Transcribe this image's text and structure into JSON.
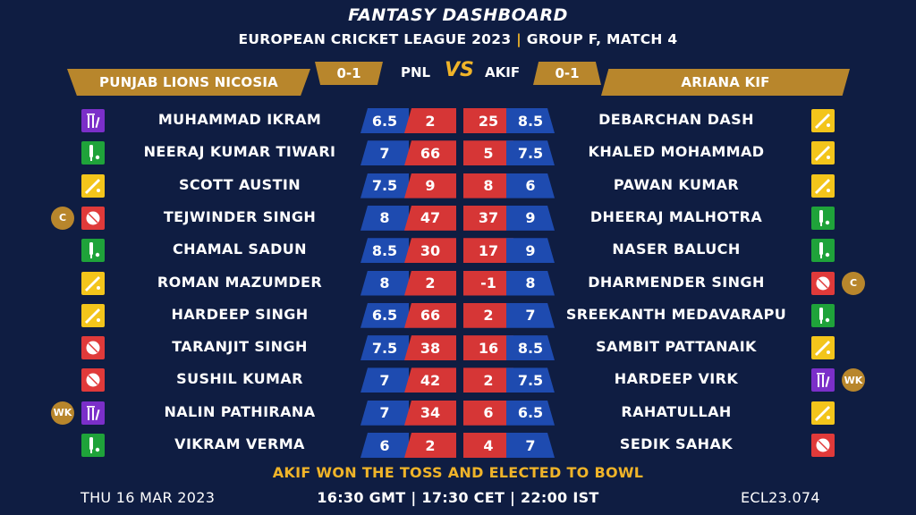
{
  "header": {
    "title": "FANTASY DASHBOARD",
    "league": "EUROPEAN CRICKET LEAGUE 2023",
    "separator": "|",
    "match": "GROUP F, MATCH 4"
  },
  "matchup": {
    "vs_label": "VS",
    "left": {
      "name": "PUNJAB LIONS NICOSIA",
      "abbr": "PNL",
      "record": "0-1"
    },
    "right": {
      "name": "ARIANA KIF",
      "abbr": "AKIF",
      "record": "0-1"
    }
  },
  "colors": {
    "background": "#0f1d42",
    "gold": "#b8862c",
    "credit_blue": "#1e4bb0",
    "points_red": "#d63636",
    "bowler_red": "#e03a3a",
    "batter_green": "#1fa33a",
    "allrounder_yellow": "#f3c51b",
    "keeper_purple": "#7b2fc9"
  },
  "rows": [
    {
      "left": {
        "name": "MUHAMMAD IKRAM",
        "role": "keeper",
        "credit": "6.5",
        "points": "2",
        "badge": ""
      },
      "right": {
        "name": "DEBARCHAN DASH",
        "role": "allrounder",
        "credit": "8.5",
        "points": "25",
        "badge": ""
      }
    },
    {
      "left": {
        "name": "NEERAJ KUMAR TIWARI",
        "role": "batter",
        "credit": "7",
        "points": "66",
        "badge": ""
      },
      "right": {
        "name": "KHALED MOHAMMAD",
        "role": "allrounder",
        "credit": "7.5",
        "points": "5",
        "badge": ""
      }
    },
    {
      "left": {
        "name": "SCOTT AUSTIN",
        "role": "allrounder",
        "credit": "7.5",
        "points": "9",
        "badge": ""
      },
      "right": {
        "name": "PAWAN KUMAR",
        "role": "allrounder",
        "credit": "6",
        "points": "8",
        "badge": ""
      }
    },
    {
      "left": {
        "name": "TEJWINDER SINGH",
        "role": "bowler",
        "credit": "8",
        "points": "47",
        "badge": "C"
      },
      "right": {
        "name": "DHEERAJ MALHOTRA",
        "role": "batter",
        "credit": "9",
        "points": "37",
        "badge": ""
      }
    },
    {
      "left": {
        "name": "CHAMAL SADUN",
        "role": "batter",
        "credit": "8.5",
        "points": "30",
        "badge": ""
      },
      "right": {
        "name": "NASER BALUCH",
        "role": "batter",
        "credit": "9",
        "points": "17",
        "badge": ""
      }
    },
    {
      "left": {
        "name": "ROMAN MAZUMDER",
        "role": "allrounder",
        "credit": "8",
        "points": "2",
        "badge": ""
      },
      "right": {
        "name": "DHARMENDER SINGH",
        "role": "bowler",
        "credit": "8",
        "points": "-1",
        "badge": "C"
      }
    },
    {
      "left": {
        "name": "HARDEEP SINGH",
        "role": "allrounder",
        "credit": "6.5",
        "points": "66",
        "badge": ""
      },
      "right": {
        "name": "SREEKANTH MEDAVARAPU",
        "role": "batter",
        "credit": "7",
        "points": "2",
        "badge": ""
      }
    },
    {
      "left": {
        "name": "TARANJIT SINGH",
        "role": "bowler",
        "credit": "7.5",
        "points": "38",
        "badge": ""
      },
      "right": {
        "name": "SAMBIT PATTANAIK",
        "role": "allrounder",
        "credit": "8.5",
        "points": "16",
        "badge": ""
      }
    },
    {
      "left": {
        "name": "SUSHIL KUMAR",
        "role": "bowler",
        "credit": "7",
        "points": "42",
        "badge": ""
      },
      "right": {
        "name": "HARDEEP VIRK",
        "role": "keeper",
        "credit": "7.5",
        "points": "2",
        "badge": "WK"
      }
    },
    {
      "left": {
        "name": "NALIN PATHIRANA",
        "role": "keeper",
        "credit": "7",
        "points": "34",
        "badge": "WK"
      },
      "right": {
        "name": "RAHATULLAH",
        "role": "allrounder",
        "credit": "6.5",
        "points": "6",
        "badge": ""
      }
    },
    {
      "left": {
        "name": "VIKRAM VERMA",
        "role": "batter",
        "credit": "6",
        "points": "2",
        "badge": ""
      },
      "right": {
        "name": "SEDIK SAHAK",
        "role": "bowler",
        "credit": "7",
        "points": "4",
        "badge": ""
      }
    }
  ],
  "toss": "AKIF WON THE TOSS AND ELECTED TO BOWL",
  "footer": {
    "date": "THU 16 MAR 2023",
    "times": "16:30 GMT | 17:30 CET | 22:00 IST",
    "code": "ECL23.074"
  }
}
